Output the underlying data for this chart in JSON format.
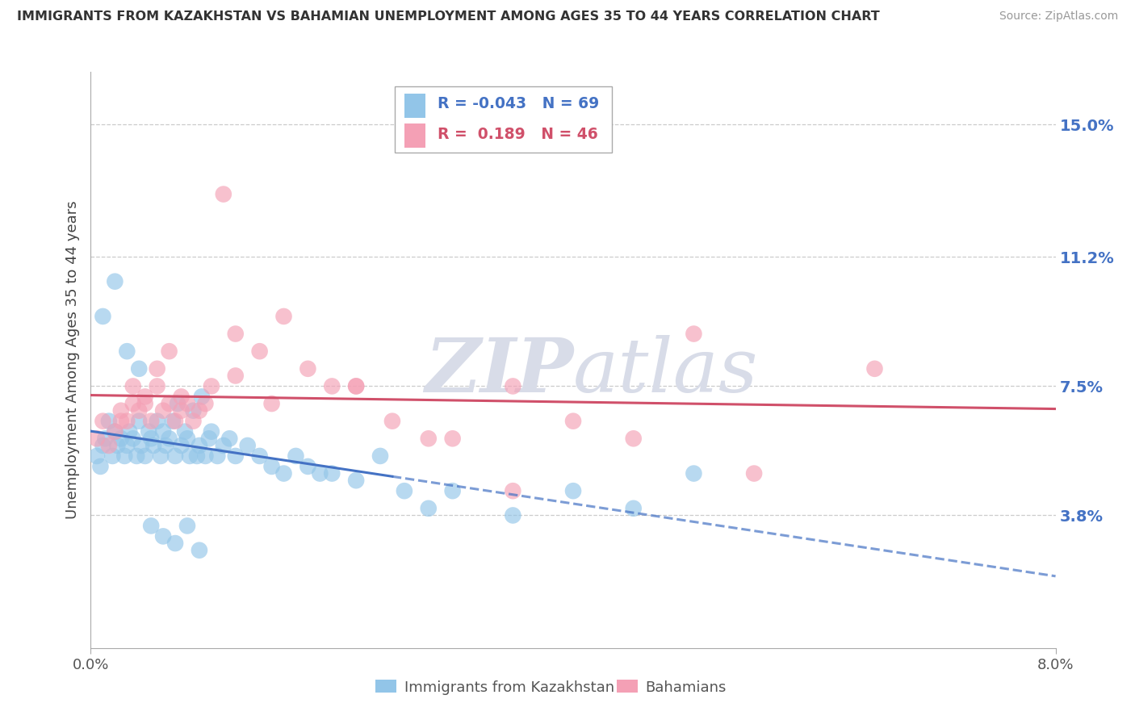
{
  "title": "IMMIGRANTS FROM KAZAKHSTAN VS BAHAMIAN UNEMPLOYMENT AMONG AGES 35 TO 44 YEARS CORRELATION CHART",
  "source": "Source: ZipAtlas.com",
  "ylabel": "Unemployment Among Ages 35 to 44 years",
  "right_yticks": [
    3.8,
    7.5,
    11.2,
    15.0
  ],
  "right_ytick_labels": [
    "3.8%",
    "7.5%",
    "11.2%",
    "15.0%"
  ],
  "legend_blue_R": "-0.043",
  "legend_blue_N": "69",
  "legend_pink_R": "0.189",
  "legend_pink_N": "46",
  "legend_label_blue": "Immigrants from Kazakhstan",
  "legend_label_pink": "Bahamians",
  "blue_color": "#92C5E8",
  "pink_color": "#F4A0B5",
  "trend_blue_color": "#4472C4",
  "trend_pink_color": "#D0506A",
  "watermark_color": "#D8DCE8",
  "xmin": 0.0,
  "xmax": 8.0,
  "ymin": 0.0,
  "ymax": 16.5,
  "blue_points_x": [
    0.05,
    0.08,
    0.1,
    0.12,
    0.15,
    0.18,
    0.2,
    0.22,
    0.25,
    0.28,
    0.3,
    0.32,
    0.35,
    0.38,
    0.4,
    0.42,
    0.45,
    0.48,
    0.5,
    0.52,
    0.55,
    0.58,
    0.6,
    0.62,
    0.65,
    0.68,
    0.7,
    0.72,
    0.75,
    0.78,
    0.8,
    0.82,
    0.85,
    0.88,
    0.9,
    0.92,
    0.95,
    0.98,
    1.0,
    1.05,
    1.1,
    1.15,
    1.2,
    1.3,
    1.4,
    1.5,
    1.6,
    1.7,
    1.8,
    1.9,
    2.0,
    2.2,
    2.4,
    2.6,
    2.8,
    3.0,
    3.5,
    4.0,
    4.5,
    5.0,
    0.1,
    0.2,
    0.3,
    0.4,
    0.5,
    0.6,
    0.7,
    0.8,
    0.9
  ],
  "blue_points_y": [
    5.5,
    5.2,
    5.8,
    6.0,
    6.5,
    5.5,
    6.2,
    5.8,
    6.0,
    5.5,
    5.8,
    6.2,
    6.0,
    5.5,
    6.5,
    5.8,
    5.5,
    6.2,
    6.0,
    5.8,
    6.5,
    5.5,
    6.2,
    5.8,
    6.0,
    6.5,
    5.5,
    7.0,
    5.8,
    6.2,
    6.0,
    5.5,
    6.8,
    5.5,
    5.8,
    7.2,
    5.5,
    6.0,
    6.2,
    5.5,
    5.8,
    6.0,
    5.5,
    5.8,
    5.5,
    5.2,
    5.0,
    5.5,
    5.2,
    5.0,
    5.0,
    4.8,
    5.5,
    4.5,
    4.0,
    4.5,
    3.8,
    4.5,
    4.0,
    5.0,
    9.5,
    10.5,
    8.5,
    8.0,
    3.5,
    3.2,
    3.0,
    3.5,
    2.8
  ],
  "pink_points_x": [
    0.05,
    0.1,
    0.15,
    0.2,
    0.25,
    0.3,
    0.35,
    0.4,
    0.45,
    0.5,
    0.55,
    0.6,
    0.65,
    0.7,
    0.75,
    0.8,
    0.85,
    0.9,
    0.95,
    1.0,
    1.1,
    1.2,
    1.4,
    1.6,
    1.8,
    2.0,
    2.2,
    2.5,
    2.8,
    3.0,
    3.5,
    4.0,
    4.5,
    5.0,
    5.5,
    6.5,
    0.25,
    0.35,
    0.45,
    0.55,
    0.65,
    0.75,
    1.2,
    1.5,
    2.2,
    3.5
  ],
  "pink_points_y": [
    6.0,
    6.5,
    5.8,
    6.2,
    6.8,
    6.5,
    7.0,
    6.8,
    7.2,
    6.5,
    7.5,
    6.8,
    7.0,
    6.5,
    7.2,
    7.0,
    6.5,
    6.8,
    7.0,
    7.5,
    13.0,
    9.0,
    8.5,
    9.5,
    8.0,
    7.5,
    7.5,
    6.5,
    6.0,
    6.0,
    7.5,
    6.5,
    6.0,
    9.0,
    5.0,
    8.0,
    6.5,
    7.5,
    7.0,
    8.0,
    8.5,
    6.8,
    7.8,
    7.0,
    7.5,
    4.5
  ]
}
